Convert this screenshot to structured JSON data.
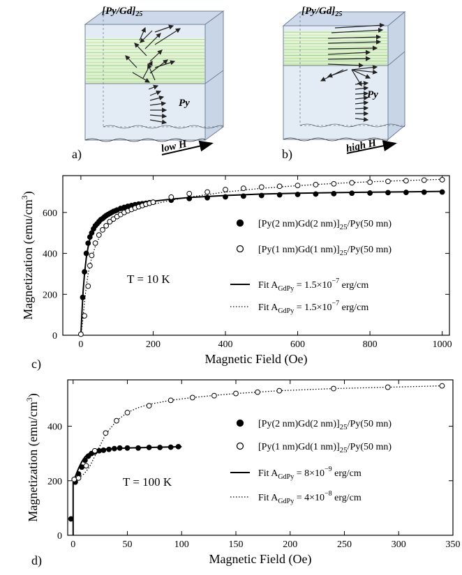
{
  "panels": {
    "a": {
      "label": "a)",
      "layer_label": "[Py/Gd]",
      "layer_sub": "25",
      "py_label": "Py",
      "field_label": "low H"
    },
    "b": {
      "label": "b)",
      "layer_label": "[Py/Gd]",
      "layer_sub": "25",
      "py_label": "Py",
      "field_label": "high H"
    }
  },
  "colors": {
    "axis": "#000000",
    "illustration_face": "#dde7f3",
    "illustration_stripe": "#c8e4a8",
    "illustration_edge": "#6e7f96",
    "fill_stripe_green": "#7fcf6a",
    "fill_stripe_light": "#d8f0c8"
  },
  "chart_data": [
    {
      "type": "scatter",
      "panel_label": "c)",
      "xlabel": "Magnetic Field (Oe)",
      "ylabel": "Magnetization (emu/cm",
      "ylabel_sup": "3",
      "ylabel_close": ")",
      "xlim": [
        -50,
        1020
      ],
      "ylim": [
        0,
        780
      ],
      "xticks": [
        0,
        200,
        400,
        600,
        800,
        1000
      ],
      "yticks": [
        0,
        200,
        400,
        600
      ],
      "annotation": "T = 10 K",
      "series": [
        {
          "name": "[Py(2 nm)Gd(2 nm)]25/Py(50 mn)",
          "marker": "filled-circle",
          "x": [
            5,
            10,
            15,
            20,
            25,
            30,
            35,
            40,
            45,
            50,
            55,
            60,
            65,
            70,
            75,
            80,
            85,
            90,
            95,
            100,
            110,
            120,
            130,
            140,
            150,
            160,
            170,
            180,
            190,
            200,
            250,
            300,
            350,
            400,
            450,
            500,
            550,
            600,
            650,
            700,
            750,
            800,
            850,
            900,
            950,
            1000
          ],
          "y": [
            185,
            310,
            400,
            450,
            480,
            500,
            520,
            535,
            545,
            555,
            565,
            570,
            578,
            585,
            590,
            595,
            600,
            605,
            608,
            612,
            620,
            625,
            630,
            634,
            638,
            641,
            643,
            645,
            648,
            650,
            660,
            668,
            672,
            676,
            680,
            683,
            686,
            688,
            690,
            692,
            694,
            695,
            697,
            698,
            699,
            700
          ]
        },
        {
          "name": "[Py(1 nm)Gd(1 nm)]25/Py(50 mn)",
          "marker": "open-circle",
          "x": [
            0,
            10,
            20,
            25,
            30,
            40,
            50,
            60,
            70,
            80,
            90,
            100,
            110,
            120,
            130,
            140,
            150,
            160,
            170,
            180,
            190,
            200,
            250,
            300,
            350,
            400,
            450,
            500,
            550,
            600,
            650,
            700,
            750,
            800,
            850,
            900,
            950,
            1000
          ],
          "y": [
            5,
            95,
            240,
            340,
            390,
            450,
            490,
            515,
            535,
            555,
            568,
            580,
            590,
            600,
            608,
            615,
            622,
            628,
            634,
            640,
            645,
            650,
            675,
            692,
            700,
            712,
            718,
            724,
            728,
            732,
            736,
            740,
            745,
            748,
            752,
            755,
            758,
            760
          ]
        },
        {
          "name": "Fit A",
          "name_sub": "GdPy",
          "name_rest": " = 1.5×10",
          "name_sup": "−7",
          "name_unit": " erg/cm",
          "style": "solid",
          "x": [
            0,
            3,
            6,
            10,
            15,
            20,
            25,
            30,
            40,
            50,
            60,
            80,
            100,
            130,
            160,
            200,
            250,
            300,
            400,
            500,
            600,
            700,
            800,
            900,
            1000
          ],
          "y": [
            0,
            110,
            210,
            300,
            380,
            430,
            470,
            500,
            535,
            560,
            578,
            600,
            615,
            632,
            644,
            655,
            665,
            673,
            683,
            690,
            694,
            697,
            699,
            701,
            703
          ]
        },
        {
          "name": "Fit A",
          "name_sub": "GdPy",
          "name_rest": " = 1.5×10",
          "name_sup": "−7",
          "name_unit": " erg/cm",
          "style": "dotted",
          "x": [
            0,
            5,
            10,
            15,
            20,
            30,
            40,
            50,
            60,
            80,
            100,
            130,
            160,
            200,
            250,
            300,
            400,
            500,
            600,
            700,
            800,
            900,
            1000
          ],
          "y": [
            0,
            70,
            160,
            240,
            300,
            380,
            435,
            475,
            505,
            545,
            572,
            600,
            620,
            640,
            660,
            675,
            700,
            718,
            731,
            742,
            750,
            756,
            762
          ]
        }
      ]
    },
    {
      "type": "scatter",
      "panel_label": "d)",
      "xlabel": "Magnetic Field (Oe)",
      "ylabel": "Magnetization (emu/cm",
      "ylabel_sup": "3",
      "ylabel_close": ")",
      "xlim": [
        -5,
        350
      ],
      "ylim": [
        0,
        570
      ],
      "xticks": [
        0,
        50,
        100,
        150,
        200,
        250,
        300,
        350
      ],
      "yticks": [
        0,
        200,
        400
      ],
      "annotation": "T = 100 K",
      "series": [
        {
          "name": "[Py(2 nm)Gd(2 nm)]25/Py(50 mn)",
          "marker": "filled-circle",
          "x": [
            -2,
            2,
            5,
            8,
            11,
            14,
            17,
            20,
            24,
            28,
            33,
            38,
            43,
            50,
            60,
            70,
            80,
            90,
            97
          ],
          "y": [
            60,
            195,
            225,
            250,
            275,
            290,
            300,
            305,
            310,
            312,
            315,
            318,
            320,
            320,
            320,
            322,
            322,
            323,
            325
          ]
        },
        {
          "name": "[Py(1 nm)Gd(1 nm)]25/Py(50 mn)",
          "marker": "open-circle",
          "x": [
            1,
            5,
            12,
            20,
            30,
            40,
            50,
            70,
            90,
            110,
            130,
            150,
            170,
            190,
            240,
            290,
            340
          ],
          "y": [
            205,
            210,
            255,
            310,
            375,
            420,
            450,
            475,
            495,
            505,
            512,
            520,
            525,
            530,
            538,
            543,
            548
          ]
        },
        {
          "name": "Fit A",
          "name_sub": "GdPy",
          "name_rest": " = 8×10",
          "name_sup": "−9",
          "name_unit": " erg/cm",
          "style": "solid",
          "x": [
            0,
            0,
            2,
            5,
            8,
            11,
            14,
            17,
            20,
            25,
            30,
            40,
            50,
            60,
            80,
            100
          ],
          "y": [
            0,
            195,
            215,
            245,
            270,
            288,
            298,
            305,
            310,
            314,
            316,
            318,
            320,
            321,
            323,
            325
          ]
        },
        {
          "name": "Fit A",
          "name_sub": "GdPy",
          "name_rest": " = 4×10",
          "name_sup": "−8",
          "name_unit": " erg/cm",
          "style": "dotted",
          "x": [
            0,
            5,
            10,
            15,
            20,
            25,
            30,
            40,
            50,
            60,
            70,
            90,
            110,
            130,
            150,
            170,
            190,
            240,
            290,
            340
          ],
          "y": [
            205,
            210,
            225,
            250,
            290,
            330,
            370,
            420,
            450,
            468,
            480,
            495,
            505,
            513,
            520,
            525,
            530,
            538,
            543,
            548
          ]
        }
      ]
    }
  ]
}
